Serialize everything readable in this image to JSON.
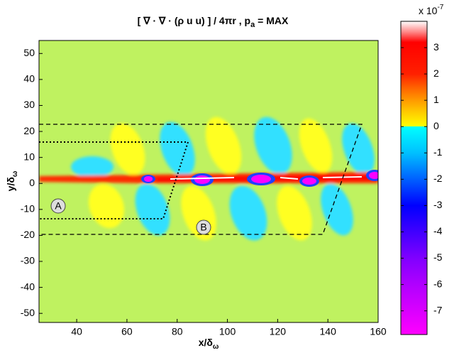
{
  "chart_data": {
    "type": "heatmap",
    "title_parts": [
      "[ ∇ · ∇ · (ρ u u) ] / 4πr ,   p",
      "a",
      " = MAX"
    ],
    "x_label_parts": [
      "x/δ",
      "ω"
    ],
    "y_label_parts": [
      "y/δ",
      "ω"
    ],
    "xlim": [
      25,
      160
    ],
    "xticks": [
      40,
      60,
      80,
      100,
      120,
      140,
      160
    ],
    "ylim": [
      -53.5,
      55
    ],
    "yticks": [
      -50,
      -40,
      -30,
      -20,
      -10,
      0,
      10,
      20,
      30,
      40,
      50
    ],
    "colorbar": {
      "multiplier_parts": [
        "x 10",
        "-7"
      ],
      "clim": [
        -7.9,
        4
      ],
      "ticks": [
        -7,
        -6,
        -5,
        -4,
        -3,
        -2,
        -1,
        0,
        1,
        2,
        3
      ],
      "colormap": [
        {
          "value": 4,
          "color": "#ffffff"
        },
        {
          "value": 3.6,
          "color": "#ff8a8a"
        },
        {
          "value": 3.2,
          "color": "#ff0000"
        },
        {
          "value": 2,
          "color": "#ff2000"
        },
        {
          "value": 1.5,
          "color": "#ff6000"
        },
        {
          "value": 1,
          "color": "#ff9a00"
        },
        {
          "value": 0.5,
          "color": "#ffd000"
        },
        {
          "value": 0,
          "color": "#ffff00"
        },
        {
          "value": 0,
          "color": "#00ffff"
        },
        {
          "value": -1,
          "color": "#00c0ff"
        },
        {
          "value": -2,
          "color": "#0060ff"
        },
        {
          "value": -3,
          "color": "#0000ff"
        },
        {
          "value": -5,
          "color": "#8000ff"
        },
        {
          "value": -6,
          "color": "#b000ff"
        },
        {
          "value": -7.9,
          "color": "#ff00ff"
        }
      ]
    },
    "annotations": [
      "A",
      "B"
    ]
  }
}
